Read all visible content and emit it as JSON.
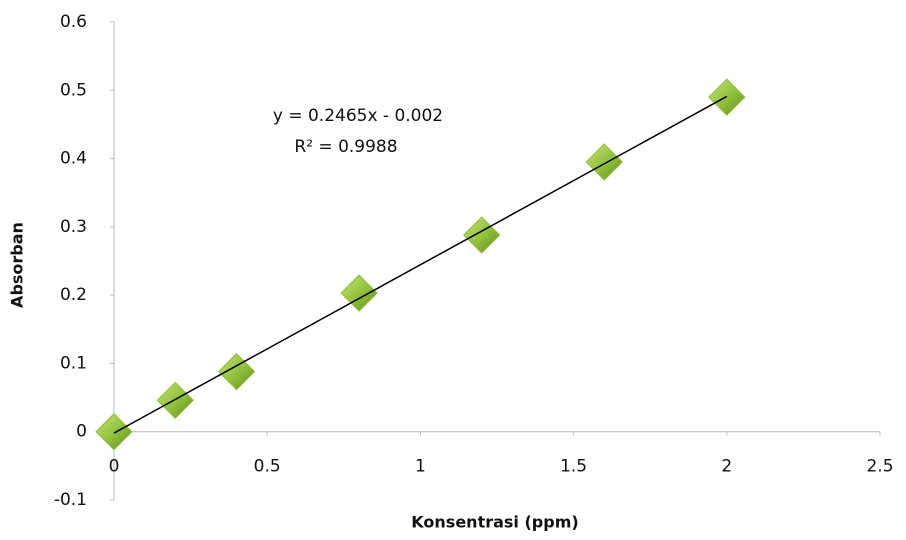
{
  "chart_data": {
    "type": "scatter",
    "x_label": "Konsentrasi (ppm)",
    "y_label": "Absorban",
    "series": [
      {
        "color": "#8fbf3a",
        "x": [
          0,
          0.2,
          0.4,
          0.8,
          1.2,
          1.6,
          2.0
        ],
        "values": [
          0,
          0.046,
          0.088,
          0.203,
          0.288,
          0.395,
          0.49
        ]
      }
    ],
    "trendline": {
      "slope": 0.2465,
      "intercept": -0.002,
      "equation": "y = 0.2465x - 0.002",
      "r_squared": "R² = 0.9988"
    },
    "xlim": [
      0,
      2.5
    ],
    "xticks": [
      0,
      0.5,
      1,
      1.5,
      2,
      2.5
    ],
    "ylim": [
      -0.1,
      0.6
    ],
    "yticks": [
      -0.1,
      0,
      0.1,
      0.2,
      0.3,
      0.4,
      0.5,
      0.6
    ],
    "grid": false
  }
}
